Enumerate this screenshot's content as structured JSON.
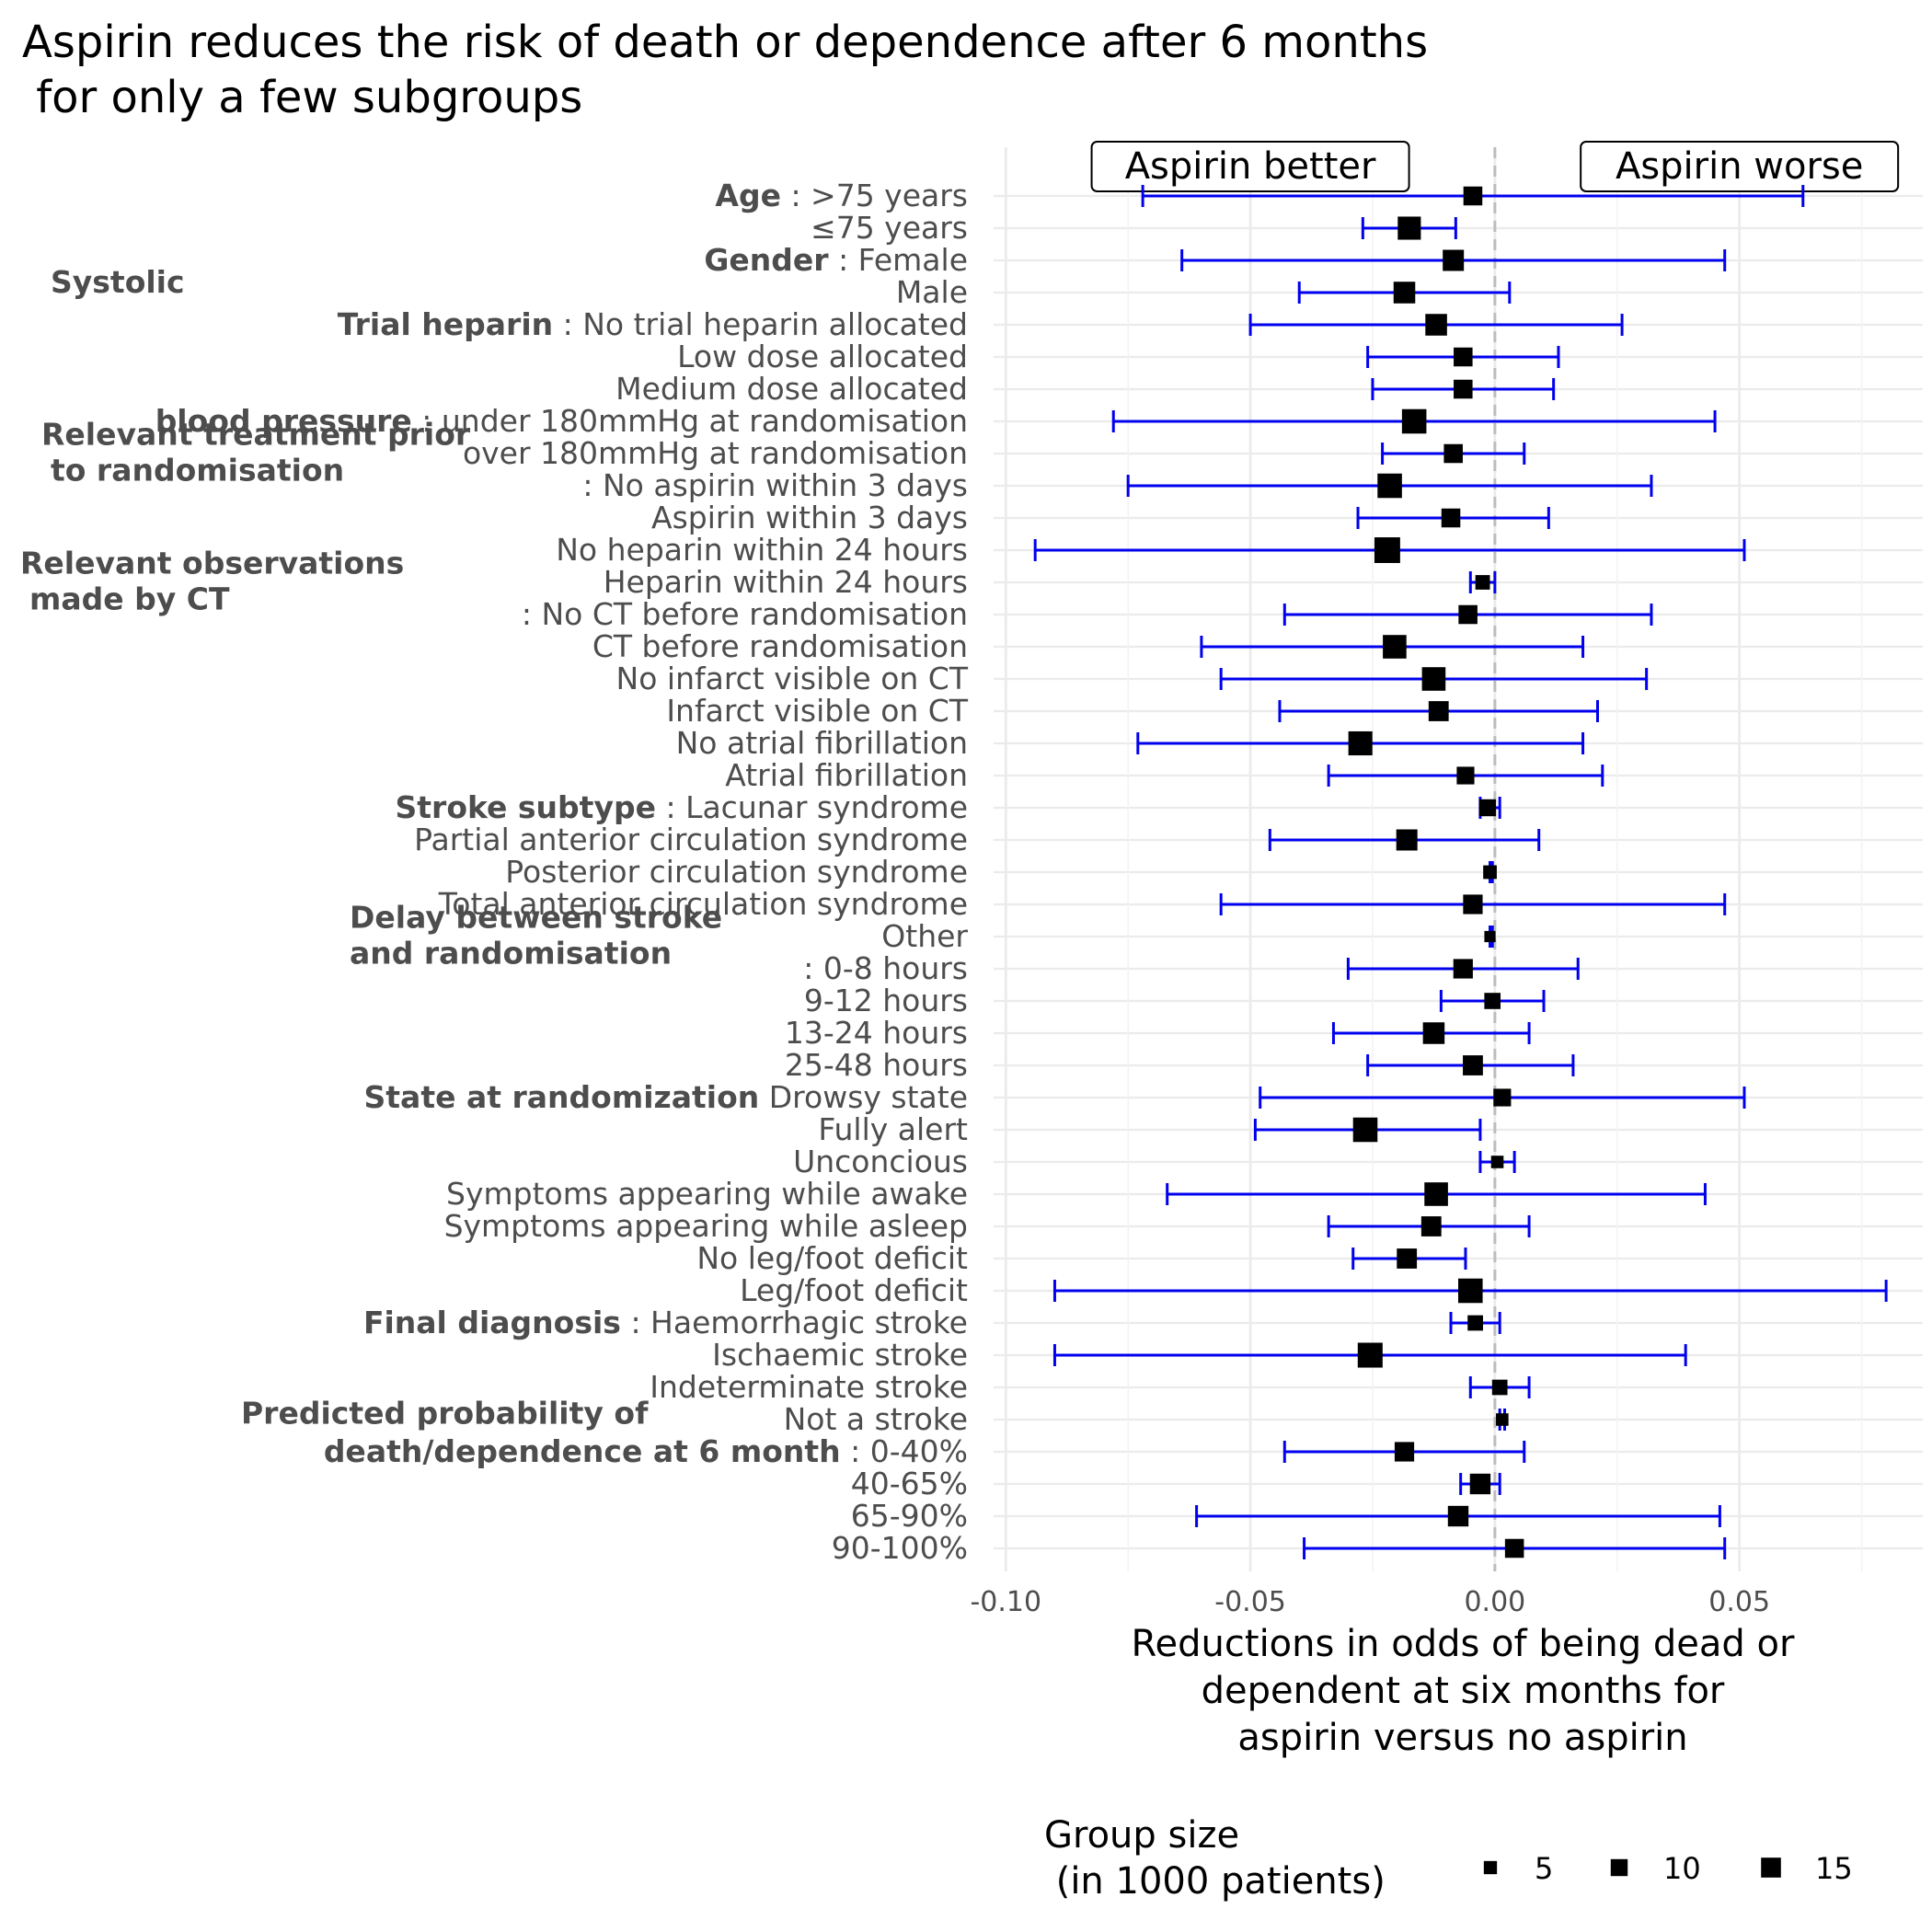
{
  "chart_data": {
    "type": "scatter",
    "subtype": "forest-plot",
    "title_lines": [
      "Aspirin reduces the risk of death or dependence after 6 months",
      " for only a few subgroups"
    ],
    "xlabel_lines": [
      "Reductions in odds of being dead or",
      "dependent at six months for",
      "aspirin versus no aspirin"
    ],
    "ylabel": "",
    "xlim": [
      -0.1025,
      0.0875
    ],
    "x_ticks": [
      -0.1,
      -0.05,
      0.0,
      0.05
    ],
    "x_tick_labels": [
      "-0.10",
      "-0.05",
      "0.00",
      "0.05"
    ],
    "reference_line_x": 0.0,
    "grid": true,
    "annotations": [
      {
        "text": "Aspirin better",
        "x": -0.05
      },
      {
        "text": "Aspirin worse",
        "x": 0.05
      }
    ],
    "legend": {
      "position": "bottom",
      "title_lines": [
        "Group size",
        " (in 1000 patients)"
      ],
      "items": [
        {
          "label": "5",
          "size": 5
        },
        {
          "label": "10",
          "size": 10
        },
        {
          "label": "15",
          "size": 15
        }
      ]
    },
    "colors": {
      "ci": "#0000ee",
      "point": "#000000",
      "reference": "#bdbdbd",
      "grid": "#ebebeb"
    },
    "group_headers": [
      {
        "lines": [
          "Systolic"
        ],
        "row": 5.8
      },
      {
        "lines": [
          "Relevant treatment prior",
          "to randomisation"
        ],
        "row": 8.3
      },
      {
        "lines": [
          "Relevant observations",
          "made by CT"
        ],
        "row": 12.3
      },
      {
        "lines": [
          "Delay between stroke",
          "and randomisation"
        ],
        "row": 23.3
      },
      {
        "lines": [
          "Predicted probability of"
        ],
        "row": 38.7
      }
    ],
    "rows": [
      {
        "bold": "Age",
        "label": " : >75 years",
        "est": -0.0045,
        "lo": -0.072,
        "hi": 0.063,
        "size": 5.5
      },
      {
        "bold": "",
        "label": "≤75 years",
        "est": -0.0175,
        "lo": -0.027,
        "hi": -0.008,
        "size": 9.5
      },
      {
        "bold": "Gender",
        "label": " : Female",
        "est": -0.0085,
        "lo": -0.064,
        "hi": 0.047,
        "size": 7.5
      },
      {
        "bold": "",
        "label": "Male",
        "est": -0.0185,
        "lo": -0.04,
        "hi": 0.003,
        "size": 8.0
      },
      {
        "bold": "Trial heparin",
        "label": " : No trial heparin allocated",
        "est": -0.012,
        "lo": -0.05,
        "hi": 0.026,
        "size": 8.0
      },
      {
        "bold": "",
        "label": "Low dose allocated",
        "est": -0.0065,
        "lo": -0.026,
        "hi": 0.013,
        "size": 5.5
      },
      {
        "bold": "",
        "label": "Medium dose allocated",
        "est": -0.0065,
        "lo": -0.025,
        "hi": 0.012,
        "size": 5.5
      },
      {
        "bold": "blood pressure",
        "label": " : under 180mmHg at randomisation",
        "est": -0.0165,
        "lo": -0.078,
        "hi": 0.045,
        "size": 11.0
      },
      {
        "bold": "",
        "label": "over 180mmHg at randomisation",
        "est": -0.0085,
        "lo": -0.023,
        "hi": 0.006,
        "size": 5.5
      },
      {
        "bold": "",
        "label": ": No aspirin within 3 days",
        "est": -0.0215,
        "lo": -0.075,
        "hi": 0.032,
        "size": 11.0
      },
      {
        "bold": "",
        "label": "Aspirin within 3 days",
        "est": -0.009,
        "lo": -0.028,
        "hi": 0.011,
        "size": 5.5
      },
      {
        "bold": "",
        "label": "No heparin within 24 hours",
        "est": -0.022,
        "lo": -0.094,
        "hi": 0.051,
        "size": 12.5
      },
      {
        "bold": "",
        "label": "Heparin within 24 hours",
        "est": -0.0025,
        "lo": -0.005,
        "hi": 0.0,
        "size": 2.5
      },
      {
        "bold": "",
        "label": ": No CT before randomisation",
        "est": -0.0055,
        "lo": -0.043,
        "hi": 0.032,
        "size": 5.5
      },
      {
        "bold": "",
        "label": "CT before randomisation",
        "est": -0.0205,
        "lo": -0.06,
        "hi": 0.018,
        "size": 10.0
      },
      {
        "bold": "",
        "label": "No infarct visible on CT",
        "est": -0.0125,
        "lo": -0.056,
        "hi": 0.031,
        "size": 10.0
      },
      {
        "bold": "",
        "label": "Infarct visible on CT",
        "est": -0.0115,
        "lo": -0.044,
        "hi": 0.021,
        "size": 6.5
      },
      {
        "bold": "",
        "label": "No atrial fibrillation",
        "est": -0.0275,
        "lo": -0.073,
        "hi": 0.018,
        "size": 10.5
      },
      {
        "bold": "",
        "label": "Atrial fibrillation",
        "est": -0.006,
        "lo": -0.034,
        "hi": 0.022,
        "size": 4.5
      },
      {
        "bold": "Stroke subtype",
        "label": " : Lacunar syndrome",
        "est": -0.0015,
        "lo": -0.003,
        "hi": 0.001,
        "size": 4.0
      },
      {
        "bold": "",
        "label": "Partial anterior circulation syndrome",
        "est": -0.018,
        "lo": -0.046,
        "hi": 0.009,
        "size": 7.5
      },
      {
        "bold": "",
        "label": "Posterior circulation syndrome",
        "est": -0.001,
        "lo": -0.001,
        "hi": -0.0005,
        "size": 2.0
      },
      {
        "bold": "",
        "label": "Total anterior circulation syndrome",
        "est": -0.0045,
        "lo": -0.056,
        "hi": 0.047,
        "size": 6.0
      },
      {
        "bold": "",
        "label": "Other",
        "est": -0.001,
        "lo": -0.001,
        "hi": -0.0005,
        "size": 1.0
      },
      {
        "bold": "",
        "label": ": 0-8 hours",
        "est": -0.0065,
        "lo": -0.03,
        "hi": 0.017,
        "size": 6.0
      },
      {
        "bold": "",
        "label": "9-12 hours",
        "est": -0.0005,
        "lo": -0.011,
        "hi": 0.01,
        "size": 3.5
      },
      {
        "bold": "",
        "label": "13-24 hours",
        "est": -0.0125,
        "lo": -0.033,
        "hi": 0.007,
        "size": 8.0
      },
      {
        "bold": "",
        "label": "25-48 hours",
        "est": -0.0045,
        "lo": -0.026,
        "hi": 0.016,
        "size": 6.5
      },
      {
        "bold": "State at randomization",
        "label": " Drowsy state",
        "est": 0.0015,
        "lo": -0.048,
        "hi": 0.051,
        "size": 4.5
      },
      {
        "bold": "",
        "label": "Fully alert",
        "est": -0.0265,
        "lo": -0.049,
        "hi": -0.003,
        "size": 11.0
      },
      {
        "bold": "",
        "label": "Unconcious",
        "est": 0.0005,
        "lo": -0.003,
        "hi": 0.004,
        "size": 1.5
      },
      {
        "bold": "",
        "label": "Symptoms appearing while awake",
        "est": -0.012,
        "lo": -0.067,
        "hi": 0.043,
        "size": 10.0
      },
      {
        "bold": "",
        "label": "Symptoms appearing while asleep",
        "est": -0.013,
        "lo": -0.034,
        "hi": 0.007,
        "size": 6.5
      },
      {
        "bold": "",
        "label": "No leg/foot deficit",
        "est": -0.018,
        "lo": -0.029,
        "hi": -0.006,
        "size": 6.5
      },
      {
        "bold": "",
        "label": "Leg/foot deficit",
        "est": -0.005,
        "lo": -0.09,
        "hi": 0.08,
        "size": 11.0
      },
      {
        "bold": "Final diagnosis",
        "label": " : Haemorrhagic stroke",
        "est": -0.004,
        "lo": -0.009,
        "hi": 0.001,
        "size": 3.0
      },
      {
        "bold": "",
        "label": "Ischaemic stroke",
        "est": -0.0255,
        "lo": -0.09,
        "hi": 0.039,
        "size": 11.5
      },
      {
        "bold": "",
        "label": "Indeterminate stroke",
        "est": 0.001,
        "lo": -0.005,
        "hi": 0.007,
        "size": 3.0
      },
      {
        "bold": "",
        "label": "Not a stroke",
        "est": 0.0015,
        "lo": 0.001,
        "hi": 0.002,
        "size": 1.5
      },
      {
        "bold": "death/dependence at 6 month",
        "label": " : 0-40%",
        "est": -0.0185,
        "lo": -0.043,
        "hi": 0.006,
        "size": 6.0
      },
      {
        "bold": "",
        "label": "40-65%",
        "est": -0.003,
        "lo": -0.007,
        "hi": 0.001,
        "size": 7.0
      },
      {
        "bold": "",
        "label": "65-90%",
        "est": -0.0075,
        "lo": -0.061,
        "hi": 0.046,
        "size": 7.0
      },
      {
        "bold": "",
        "label": "90-100%",
        "est": 0.004,
        "lo": -0.039,
        "hi": 0.047,
        "size": 5.5
      }
    ]
  }
}
